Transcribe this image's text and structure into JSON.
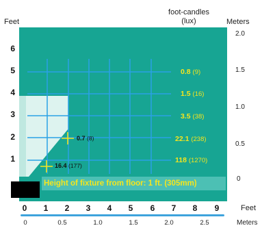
{
  "headers": {
    "feet_left": "Feet",
    "fc_line1": "foot-candles",
    "fc_line2": "(lux)",
    "meters_right": "Meters"
  },
  "feet_ticks_left": [
    "6",
    "5",
    "4",
    "3",
    "2",
    "1"
  ],
  "meter_ticks_right": [
    "2.0",
    "1.5",
    "1.0",
    "0.5",
    "0"
  ],
  "footcandle_labels": [
    {
      "fc": "0.8",
      "lux": "(9)"
    },
    {
      "fc": "1.5",
      "lux": "(16)"
    },
    {
      "fc": "3.5",
      "lux": "(38)"
    },
    {
      "fc": "22.1",
      "lux": "(238)"
    },
    {
      "fc": "118",
      "lux": "(1270)"
    }
  ],
  "inner_labels": [
    {
      "fc": "0.7",
      "lux": "(8)"
    },
    {
      "fc": "16.4",
      "lux": "(177)"
    }
  ],
  "caption": "Height of fixture from floor: 1 ft. (305mm)",
  "feet_ticks_bottom": [
    "0",
    "1",
    "2",
    "3",
    "4",
    "5",
    "6",
    "7",
    "8",
    "9"
  ],
  "feet_unit_bottom": "Feet",
  "meter_ticks_bottom": [
    "0",
    "0.5",
    "1.0",
    "1.5",
    "2.0",
    "2.5"
  ],
  "meters_unit_bottom": "Meters",
  "colors": {
    "panel": "#17a593",
    "grid": "#2aa2e6",
    "highlight": "#f5e51e",
    "light_cone": "#e8f7f3"
  }
}
